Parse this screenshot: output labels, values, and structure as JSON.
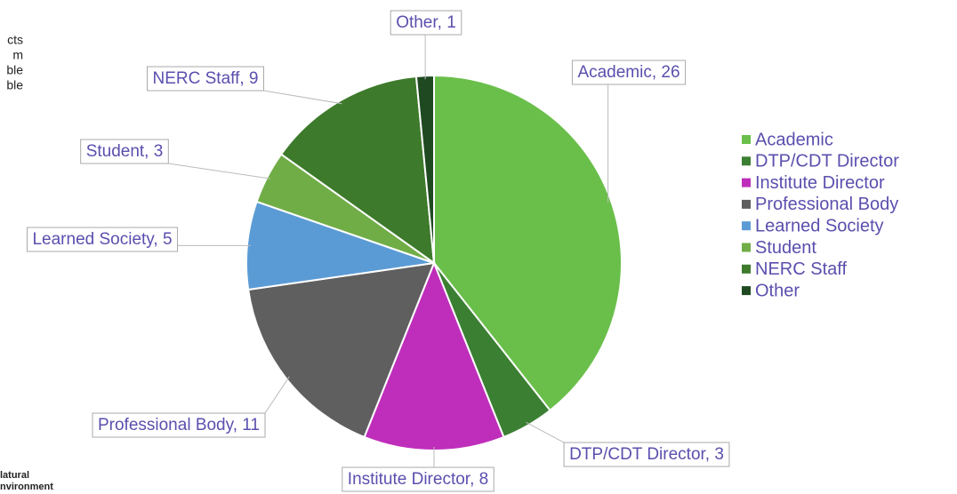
{
  "chart_data": {
    "type": "pie",
    "categories": [
      "Academic",
      "DTP/CDT Director",
      "Institute Director",
      "Professional Body",
      "Learned Society",
      "Student",
      "NERC Staff",
      "Other"
    ],
    "values": [
      26,
      3,
      8,
      11,
      5,
      3,
      9,
      1
    ],
    "value_labels": [
      "Academic, 26",
      "DTP/CDT Director, 3",
      "Institute Director, 8",
      "Professional Body, 11",
      "Learned Society, 5",
      "Student, 3",
      "NERC Staff, 9",
      "Other, 1"
    ],
    "colors": [
      "#6abf4b",
      "#3b7f33",
      "#bf2ebb",
      "#5f5f5f",
      "#5b9bd5",
      "#70ad47",
      "#3d7a2b",
      "#1f4a21"
    ],
    "legend": "right"
  },
  "clipped_text": [
    "cts",
    "m",
    "ble",
    "ble"
  ],
  "logo_text": [
    "latural",
    "nvironment"
  ]
}
